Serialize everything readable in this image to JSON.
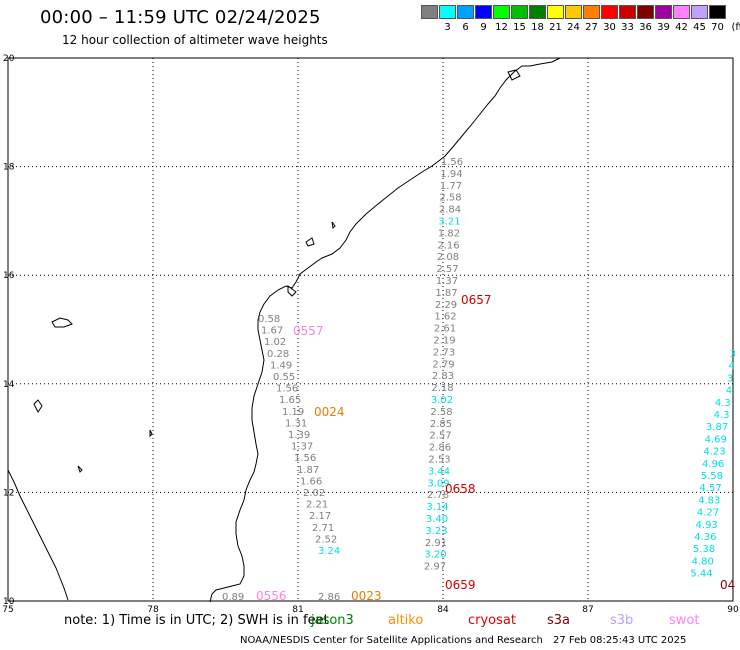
{
  "header": {
    "title": "00:00 – 11:59 UTC 02/24/2025",
    "subtitle": "12 hour collection of altimeter wave heights"
  },
  "legend": {
    "unit": "(ft)",
    "colors": [
      "#808080",
      "#00ffff",
      "#00a0ff",
      "#0000ff",
      "#00ff00",
      "#00c000",
      "#008000",
      "#ffff00",
      "#ffc800",
      "#ff8000",
      "#ff0000",
      "#c80000",
      "#800000",
      "#a000a0",
      "#ff80ff",
      "#c0a0ff",
      "#000000"
    ],
    "labels": [
      "",
      "3",
      "6",
      "9",
      "12",
      "15",
      "18",
      "21",
      "24",
      "27",
      "30",
      "33",
      "36",
      "39",
      "42",
      "45",
      "70"
    ]
  },
  "map": {
    "lon_ticks": [
      "75",
      "78",
      "81",
      "84",
      "87",
      "90"
    ],
    "lat_ticks": [
      "10",
      "12",
      "14",
      "16",
      "18",
      "20"
    ],
    "lon_range": [
      75,
      90
    ],
    "lat_range": [
      10,
      20
    ],
    "coastline_color": "#000000",
    "grid": "dotted"
  },
  "tracks": [
    {
      "name": "track-84",
      "values": [
        {
          "t": "1.56",
          "c": "#808080"
        },
        {
          "t": "1.94",
          "c": "#808080"
        },
        {
          "t": "1.77",
          "c": "#808080"
        },
        {
          "t": "2.58",
          "c": "#808080"
        },
        {
          "t": "2.84",
          "c": "#808080"
        },
        {
          "t": "3.21",
          "c": "#00e0e0"
        },
        {
          "t": "1.82",
          "c": "#808080"
        },
        {
          "t": "2.16",
          "c": "#808080"
        },
        {
          "t": "2.08",
          "c": "#808080"
        },
        {
          "t": "2.57",
          "c": "#808080"
        },
        {
          "t": "1.37",
          "c": "#808080"
        },
        {
          "t": "1.87",
          "c": "#808080"
        },
        {
          "t": "2.29",
          "c": "#808080"
        },
        {
          "t": "1.62",
          "c": "#808080"
        },
        {
          "t": "2.61",
          "c": "#808080"
        },
        {
          "t": "2.19",
          "c": "#808080"
        },
        {
          "t": "2.73",
          "c": "#808080"
        },
        {
          "t": "2.79",
          "c": "#808080"
        },
        {
          "t": "2.83",
          "c": "#808080"
        },
        {
          "t": "2.18",
          "c": "#808080"
        },
        {
          "t": "3.02",
          "c": "#00e0e0"
        },
        {
          "t": "2.58",
          "c": "#808080"
        },
        {
          "t": "2.85",
          "c": "#808080"
        },
        {
          "t": "2.57",
          "c": "#808080"
        },
        {
          "t": "2.86",
          "c": "#808080"
        },
        {
          "t": "2.53",
          "c": "#808080"
        },
        {
          "t": "3.44",
          "c": "#00e0e0"
        },
        {
          "t": "3.09",
          "c": "#00e0e0"
        },
        {
          "t": "2.78",
          "c": "#808080"
        },
        {
          "t": "3.14",
          "c": "#00e0e0"
        },
        {
          "t": "3.40",
          "c": "#00e0e0"
        },
        {
          "t": "3.23",
          "c": "#00e0e0"
        },
        {
          "t": "2.91",
          "c": "#808080"
        },
        {
          "t": "3.20",
          "c": "#00e0e0"
        },
        {
          "t": "2.97",
          "c": "#808080"
        }
      ]
    },
    {
      "name": "track-81",
      "values": [
        {
          "t": "0.58",
          "c": "#808080"
        },
        {
          "t": "1.67",
          "c": "#808080"
        },
        {
          "t": "1.02",
          "c": "#808080"
        },
        {
          "t": "0.28",
          "c": "#808080"
        },
        {
          "t": "1.49",
          "c": "#808080"
        },
        {
          "t": "0.55",
          "c": "#808080"
        },
        {
          "t": "1.56",
          "c": "#808080"
        },
        {
          "t": "1.65",
          "c": "#808080"
        },
        {
          "t": "1.19",
          "c": "#808080"
        },
        {
          "t": "1.31",
          "c": "#808080"
        },
        {
          "t": "1.39",
          "c": "#808080"
        },
        {
          "t": "1.37",
          "c": "#808080"
        },
        {
          "t": "1.56",
          "c": "#808080"
        },
        {
          "t": "1.87",
          "c": "#808080"
        },
        {
          "t": "1.66",
          "c": "#808080"
        },
        {
          "t": "2.02",
          "c": "#808080"
        },
        {
          "t": "2.21",
          "c": "#808080"
        },
        {
          "t": "2.17",
          "c": "#808080"
        },
        {
          "t": "2.71",
          "c": "#808080"
        },
        {
          "t": "2.52",
          "c": "#808080"
        },
        {
          "t": "3.24",
          "c": "#00e0e0"
        },
        {
          "t": "2.86",
          "c": "#808080"
        },
        {
          "t": "0.89",
          "c": "#808080"
        }
      ]
    },
    {
      "name": "track-90",
      "values": [
        {
          "t": "3",
          "c": "#00e0e0"
        },
        {
          "t": "4",
          "c": "#00e0e0"
        },
        {
          "t": "3",
          "c": "#00e0e0"
        },
        {
          "t": "4",
          "c": "#00e0e0"
        },
        {
          "t": "4.3",
          "c": "#00e0e0"
        },
        {
          "t": "4.3",
          "c": "#00e0e0"
        },
        {
          "t": "3.87",
          "c": "#00e0e0"
        },
        {
          "t": "4.69",
          "c": "#00e0e0"
        },
        {
          "t": "4.23",
          "c": "#00e0e0"
        },
        {
          "t": "4.96",
          "c": "#00e0e0"
        },
        {
          "t": "5.58",
          "c": "#00e0e0"
        },
        {
          "t": "4.57",
          "c": "#00e0e0"
        },
        {
          "t": "4.83",
          "c": "#00e0e0"
        },
        {
          "t": "4.27",
          "c": "#00e0e0"
        },
        {
          "t": "4.93",
          "c": "#00e0e0"
        },
        {
          "t": "4.36",
          "c": "#00e0e0"
        },
        {
          "t": "5.38",
          "c": "#00e0e0"
        },
        {
          "t": "4.80",
          "c": "#00e0e0"
        },
        {
          "t": "5.44",
          "c": "#00e0e0"
        }
      ]
    }
  ],
  "pass_labels": [
    {
      "t": "0657",
      "c": "#d00000"
    },
    {
      "t": "0557",
      "c": "#ff80e0"
    },
    {
      "t": "0024",
      "c": "#e08000"
    },
    {
      "t": "0658",
      "c": "#d00000"
    },
    {
      "t": "0659",
      "c": "#d00000"
    },
    {
      "t": "0556",
      "c": "#ff80e0"
    },
    {
      "t": "0023",
      "c": "#e08000"
    },
    {
      "t": "04",
      "c": "#800000"
    }
  ],
  "footer": {
    "note": "note: 1) Time is in UTC; 2) SWH is in feet",
    "satellites": [
      {
        "name": "jason3",
        "color": "#008000"
      },
      {
        "name": "altiko",
        "color": "#ff8c00"
      },
      {
        "name": "cryosat",
        "color": "#e00000"
      },
      {
        "name": "s3a",
        "color": "#800000"
      },
      {
        "name": "s3b",
        "color": "#c0a0ff"
      },
      {
        "name": "swot",
        "color": "#ff80ff"
      }
    ],
    "credit": "NOAA/NESDIS Center for Satellite Applications and Research",
    "timestamp": "27 Feb 08:25:43 UTC 2025"
  }
}
